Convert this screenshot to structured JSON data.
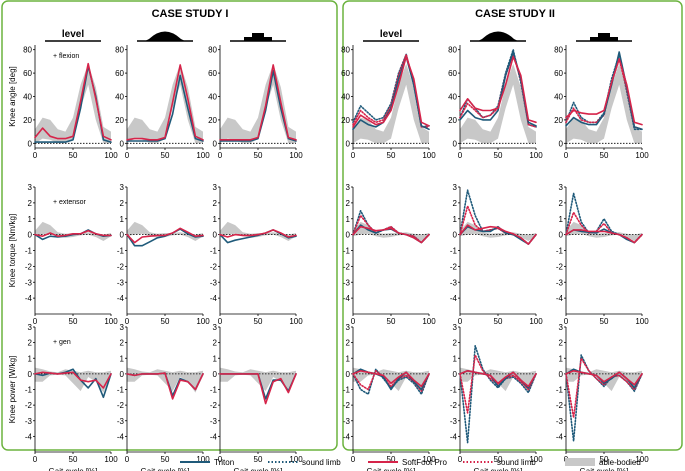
{
  "figure": {
    "case_titles": [
      "CASE STUDY I",
      "CASE STUDY II"
    ],
    "condition_label_level": "level",
    "row_ylabels": [
      "Knee angle [deg]",
      "Knee torque [Nm/kg]",
      "Knee power [W/kg]"
    ],
    "row_annotations": [
      "+ flexion",
      "+ extensor",
      "+ gen"
    ],
    "xlabel": "Gait cycle [%]"
  },
  "colors": {
    "triton": "#1f5a7a",
    "softfoot": "#d6244a",
    "able_bodied": "#c8c8c8",
    "frame": "#6cb33f"
  },
  "legend": [
    {
      "label": "Triton",
      "style": "solid",
      "color": "#1f5a7a"
    },
    {
      "label": "sound limb",
      "style": "dotted",
      "color": "#1f5a7a"
    },
    {
      "label": "SoftFoot Pro",
      "style": "solid",
      "color": "#d6244a"
    },
    {
      "label": "sound limb",
      "style": "dotted",
      "color": "#d6244a"
    },
    {
      "label": "able-bodied",
      "style": "band",
      "color": "#c8c8c8"
    }
  ],
  "chart_data": {
    "type": "line",
    "xlabel": "Gait cycle [%]",
    "x": [
      0,
      10,
      20,
      30,
      40,
      50,
      60,
      70,
      80,
      90,
      100
    ],
    "xlim": [
      0,
      100
    ],
    "xticks": [
      0,
      50,
      100
    ],
    "rows": [
      {
        "name": "angle",
        "ylabel": "Knee angle [deg]",
        "annotation": "+ flexion",
        "ylim": [
          -4,
          84
        ],
        "yticks": [
          0,
          20,
          40,
          60,
          80
        ],
        "able_bodied": {
          "lower": [
            0,
            4,
            3,
            0,
            0,
            4,
            30,
            50,
            20,
            0,
            0
          ],
          "upper": [
            12,
            22,
            20,
            12,
            10,
            22,
            50,
            68,
            48,
            14,
            10
          ]
        }
      },
      {
        "name": "torque",
        "ylabel": "Knee torque [Nm/kg]",
        "annotation": "+ extensor",
        "ylim": [
          -5,
          3
        ],
        "yticks": [
          -4,
          -3,
          -2,
          -1,
          0,
          1,
          2,
          3
        ],
        "able_bodied": {
          "lower": [
            -0.1,
            0,
            0.05,
            -0.1,
            -0.2,
            -0.15,
            -0.05,
            0,
            -0.15,
            -0.4,
            -0.1
          ],
          "upper": [
            0.25,
            0.8,
            0.6,
            0.15,
            0.05,
            0.1,
            0.1,
            0.15,
            0.05,
            0,
            0.1
          ]
        }
      },
      {
        "name": "power",
        "ylabel": "Knee power [W/kg]",
        "annotation": "+ gen",
        "ylim": [
          -5,
          3
        ],
        "yticks": [
          -4,
          -3,
          -2,
          -1,
          0,
          1,
          2,
          3
        ],
        "able_bodied": {
          "lower": [
            -0.5,
            -0.5,
            -0.1,
            -0.05,
            -0.1,
            -0.6,
            -1.1,
            -0.2,
            -0.5,
            -1.2,
            -0.1
          ],
          "upper": [
            0.4,
            0.3,
            0.15,
            0.1,
            0.3,
            0.2,
            0.1,
            0.2,
            0.1,
            0.1,
            0.2
          ]
        }
      }
    ],
    "columns": [
      {
        "case": "CASE STUDY I",
        "condition": "level",
        "has_sound_limb": false,
        "series": {
          "angle": {
            "triton": [
              1,
              1,
              1,
              1,
              1,
              3,
              30,
              66,
              40,
              3,
              1
            ],
            "softfoot": [
              5,
              13,
              6,
              4,
              4,
              6,
              36,
              68,
              38,
              6,
              3
            ]
          },
          "torque": {
            "triton": [
              0,
              -0.3,
              -0.1,
              -0.15,
              -0.1,
              0,
              0.05,
              0.3,
              0.05,
              -0.1,
              -0.05
            ],
            "softfoot": [
              0,
              -0.1,
              0.1,
              -0.1,
              -0.05,
              0.05,
              0.05,
              0.25,
              0.05,
              -0.05,
              -0.05
            ]
          },
          "power": {
            "triton": [
              0,
              -0.1,
              0.05,
              0,
              0.1,
              0.3,
              -0.4,
              -0.9,
              -0.3,
              -1.5,
              0
            ],
            "softfoot": [
              0,
              0.1,
              0.05,
              0,
              0.05,
              0.1,
              -0.4,
              -0.5,
              -0.4,
              -0.9,
              0
            ]
          }
        }
      },
      {
        "case": "CASE STUDY I",
        "condition": "ramp",
        "has_sound_limb": false,
        "series": {
          "angle": {
            "triton": [
              2,
              2,
              2,
              2,
              2,
              4,
              25,
              58,
              30,
              4,
              2
            ],
            "softfoot": [
              3,
              4,
              4,
              3,
              3,
              5,
              35,
              67,
              38,
              6,
              3
            ]
          },
          "torque": {
            "triton": [
              0,
              -0.7,
              -0.7,
              -0.45,
              -0.2,
              -0.1,
              0.1,
              0.35,
              0.05,
              -0.15,
              -0.1
            ],
            "softfoot": [
              0,
              -0.5,
              -0.15,
              -0.1,
              -0.05,
              -0.05,
              0.1,
              0.4,
              0.15,
              -0.1,
              -0.05
            ]
          },
          "power": {
            "triton": [
              0,
              -0.1,
              0,
              0,
              0,
              0.05,
              -1.4,
              -0.3,
              -0.5,
              -1.0,
              0
            ],
            "softfoot": [
              0,
              -0.1,
              0,
              0,
              0,
              0.05,
              -1.6,
              -0.4,
              -0.5,
              -1.0,
              0
            ]
          }
        }
      },
      {
        "case": "CASE STUDY I",
        "condition": "stairs",
        "has_sound_limb": false,
        "series": {
          "angle": {
            "triton": [
              2,
              2,
              2,
              2,
              2,
              4,
              28,
              62,
              30,
              4,
              2
            ],
            "softfoot": [
              3,
              3,
              3,
              3,
              3,
              5,
              32,
              67,
              35,
              5,
              3
            ]
          },
          "torque": {
            "triton": [
              0,
              -0.5,
              -0.35,
              -0.25,
              -0.15,
              -0.05,
              0.1,
              0.3,
              0.05,
              -0.2,
              -0.1
            ],
            "softfoot": [
              0,
              -0.15,
              0,
              -0.05,
              -0.05,
              0,
              0.1,
              0.3,
              0.1,
              -0.15,
              -0.05
            ]
          },
          "power": {
            "triton": [
              0,
              0,
              0,
              0,
              0,
              0,
              -1.6,
              -0.4,
              -0.4,
              -1.1,
              0
            ],
            "softfoot": [
              0,
              0,
              0,
              0,
              0,
              0,
              -1.9,
              -0.5,
              -0.3,
              -1.2,
              0
            ]
          }
        }
      },
      {
        "case": "CASE STUDY II",
        "condition": "level",
        "has_sound_limb": true,
        "series": {
          "angle": {
            "triton": [
              12,
              20,
              16,
              14,
              18,
              30,
              55,
              74,
              50,
              15,
              12
            ],
            "softfoot": [
              14,
              24,
              20,
              16,
              18,
              28,
              50,
              74,
              55,
              18,
              15
            ],
            "triton_sound": [
              18,
              32,
              26,
              20,
              22,
              34,
              60,
              76,
              50,
              14,
              15
            ],
            "softfoot_sound": [
              16,
              28,
              22,
              18,
              20,
              32,
              58,
              76,
              52,
              14,
              14
            ]
          },
          "torque": {
            "triton": [
              0,
              0.6,
              0.3,
              0.1,
              0.3,
              0.35,
              0.1,
              0,
              -0.2,
              -0.5,
              0
            ],
            "softfoot": [
              0,
              0.5,
              0.4,
              0.25,
              0.3,
              0.4,
              0.1,
              0,
              -0.2,
              -0.5,
              0
            ],
            "triton_sound": [
              0,
              1.5,
              0.6,
              0.1,
              0.3,
              0.5,
              0.1,
              0,
              -0.1,
              -0.5,
              0
            ],
            "softfoot_sound": [
              0,
              1.2,
              0.6,
              0.1,
              0.3,
              0.5,
              0.1,
              0,
              -0.1,
              -0.5,
              0
            ]
          },
          "power": {
            "triton": [
              0,
              0.3,
              0.1,
              0,
              -0.2,
              -1.0,
              -0.3,
              0.1,
              -0.5,
              -1.0,
              0
            ],
            "softfoot": [
              0,
              0.2,
              0.1,
              0,
              -0.1,
              -0.6,
              -0.2,
              0.1,
              -0.4,
              -0.8,
              0
            ],
            "triton_sound": [
              0,
              -1.0,
              -1.3,
              0.3,
              -0.3,
              -0.9,
              -0.4,
              -0.2,
              -0.6,
              -1.3,
              0
            ],
            "softfoot_sound": [
              0,
              -0.7,
              -1.0,
              0.2,
              -0.2,
              -0.8,
              -0.3,
              -0.1,
              -0.5,
              -1.1,
              0
            ]
          }
        }
      },
      {
        "case": "CASE STUDY II",
        "condition": "ramp",
        "has_sound_limb": true,
        "series": {
          "angle": {
            "triton": [
              20,
              28,
              22,
              20,
              20,
              28,
              58,
              78,
              55,
              18,
              15
            ],
            "softfoot": [
              28,
              38,
              30,
              28,
              28,
              30,
              50,
              74,
              58,
              20,
              18
            ],
            "triton_sound": [
              22,
              38,
              30,
              22,
              24,
              32,
              60,
              80,
              52,
              16,
              14
            ],
            "softfoot_sound": [
              22,
              34,
              28,
              22,
              24,
              30,
              58,
              76,
              54,
              16,
              14
            ]
          },
          "torque": {
            "triton": [
              0,
              0.5,
              0.3,
              0.2,
              0.2,
              0.5,
              0.1,
              0,
              -0.3,
              -0.6,
              0
            ],
            "softfoot": [
              0,
              0.6,
              0.3,
              0.4,
              0.5,
              0.45,
              0.2,
              0.05,
              -0.2,
              -0.6,
              0
            ],
            "triton_sound": [
              0,
              2.8,
              1.2,
              0.2,
              0.3,
              0.4,
              0.1,
              0,
              -0.2,
              -0.6,
              0
            ],
            "softfoot_sound": [
              0,
              1.8,
              0.6,
              0.2,
              0.3,
              0.4,
              0.1,
              0,
              -0.2,
              -0.6,
              0
            ]
          },
          "power": {
            "triton": [
              0,
              0.2,
              0.1,
              0,
              -0.1,
              -0.8,
              -0.3,
              0.1,
              -0.4,
              -0.9,
              0
            ],
            "softfoot": [
              0,
              0.2,
              0.1,
              0,
              -0.1,
              -0.6,
              -0.2,
              0.1,
              -0.4,
              -0.8,
              0
            ],
            "triton_sound": [
              0,
              -4.4,
              1.8,
              0.3,
              -0.4,
              -0.9,
              -0.3,
              -0.2,
              -0.6,
              -1.2,
              0
            ],
            "softfoot_sound": [
              0,
              -2.5,
              1.2,
              0.2,
              -0.3,
              -0.7,
              -0.3,
              -0.1,
              -0.5,
              -1.0,
              0
            ]
          }
        }
      },
      {
        "case": "CASE STUDY II",
        "condition": "stairs",
        "has_sound_limb": true,
        "series": {
          "angle": {
            "triton": [
              15,
              22,
              18,
              16,
              16,
              25,
              50,
              78,
              48,
              14,
              12
            ],
            "softfoot": [
              22,
              28,
              26,
              25,
              25,
              28,
              52,
              72,
              50,
              18,
              16
            ],
            "triton_sound": [
              18,
              35,
              22,
              18,
              18,
              26,
              55,
              76,
              44,
              12,
              12
            ],
            "softfoot_sound": [
              18,
              30,
              20,
              18,
              18,
              24,
              52,
              72,
              46,
              14,
              12
            ]
          },
          "torque": {
            "triton": [
              0,
              0.3,
              0.2,
              0.15,
              0.1,
              0.35,
              0.1,
              0,
              -0.3,
              -0.5,
              0
            ],
            "softfoot": [
              0,
              0.3,
              0.3,
              0.2,
              0.2,
              0.2,
              0.1,
              0,
              -0.2,
              -0.5,
              0
            ],
            "triton_sound": [
              0,
              2.6,
              0.8,
              0.1,
              0.2,
              1.0,
              0.2,
              0,
              -0.2,
              -0.5,
              0
            ],
            "softfoot_sound": [
              0,
              1.4,
              0.6,
              0.1,
              0.2,
              0.7,
              0.1,
              0,
              -0.2,
              -0.5,
              0
            ]
          },
          "power": {
            "triton": [
              0,
              0.3,
              0.1,
              0,
              -0.1,
              -0.6,
              -0.3,
              0.1,
              -0.3,
              -0.9,
              0
            ],
            "softfoot": [
              0,
              0.2,
              0.1,
              0,
              -0.1,
              -0.5,
              -0.2,
              0.1,
              -0.3,
              -0.7,
              0
            ],
            "triton_sound": [
              0,
              -4.3,
              1.2,
              0.2,
              -0.3,
              -0.8,
              -0.2,
              -0.1,
              -0.5,
              -1.1,
              0
            ],
            "softfoot_sound": [
              0,
              -2.8,
              1.0,
              0.2,
              -0.3,
              -0.7,
              -0.2,
              -0.1,
              -0.5,
              -1.0,
              0
            ]
          }
        }
      }
    ]
  }
}
